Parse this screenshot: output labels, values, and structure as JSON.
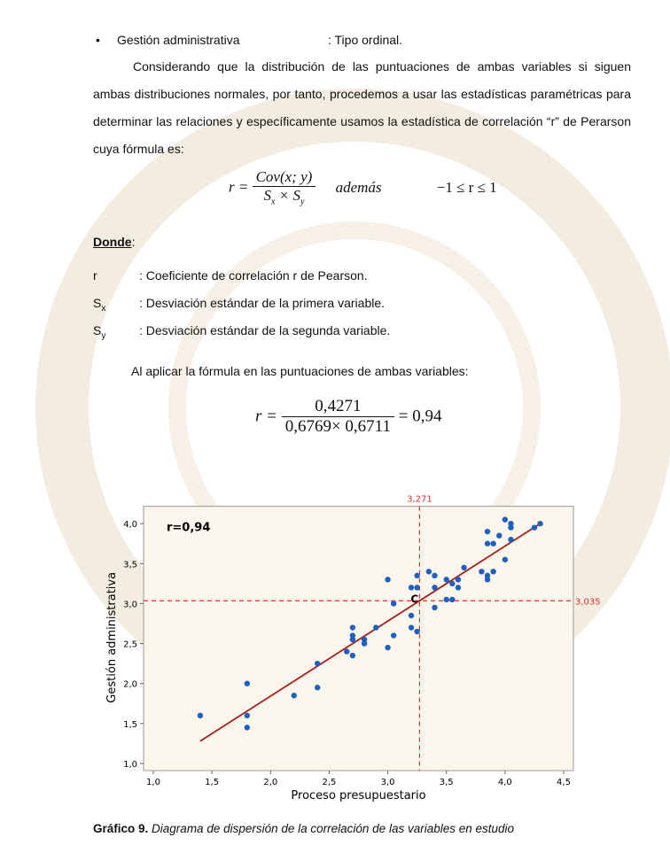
{
  "bullet": {
    "label": "Gestión administrativa",
    "text": ": Tipo ordinal."
  },
  "paragraph_1": "Considerando que la distribución de las puntuaciones de ambas variables si siguen ambas distribuciones normales, por tanto, procedemos a usar las estadísticas paramétricas para determinar las relaciones y específicamente usamos la estadística de correlación “r” de Perarson cuya fórmula es:",
  "formula_1": {
    "lhs": "r =",
    "numerator": "Cov(x; y)",
    "s1": "S",
    "sub1": "x",
    "times": "×",
    "s2": "S",
    "sub2": "y",
    "note": "además",
    "range": "−1 ≤ r ≤ 1"
  },
  "donde": {
    "label": "Donde",
    "colon": ":"
  },
  "definitions": [
    {
      "symbol": "r",
      "sub": "",
      "text": ": Coeficiente de correlación r de Pearson."
    },
    {
      "symbol": "S",
      "sub": "x",
      "text": ": Desviación estándar de la primera variable."
    },
    {
      "symbol": "S",
      "sub": "y",
      "text": ": Desviación estándar de la segunda variable."
    }
  ],
  "paragraph_2": "Al aplicar la fórmula en las puntuaciones de ambas variables:",
  "formula_2": {
    "lhs": "r =",
    "numerator": "0,4271",
    "denominator": "0,6769× 0,6711",
    "result": "= 0,94"
  },
  "chart_data": {
    "type": "scatter",
    "xlabel": "Proceso presupuestario",
    "ylabel": "Gestión administrativa",
    "annotation": "r=0,94",
    "center_label": "C",
    "xlim": [
      1.0,
      4.5
    ],
    "ylim": [
      1.0,
      4.15
    ],
    "xticks": [
      {
        "value": 1.0,
        "label": "1,0"
      },
      {
        "value": 1.5,
        "label": "1,5"
      },
      {
        "value": 2.0,
        "label": "2,0"
      },
      {
        "value": 2.5,
        "label": "2,5"
      },
      {
        "value": 3.0,
        "label": "3,0"
      },
      {
        "value": 3.5,
        "label": "3,5"
      },
      {
        "value": 4.0,
        "label": "4,0"
      },
      {
        "value": 4.5,
        "label": "4,5"
      }
    ],
    "yticks": [
      {
        "value": 1.0,
        "label": "1,0"
      },
      {
        "value": 1.5,
        "label": "1,5"
      },
      {
        "value": 2.0,
        "label": "2,0"
      },
      {
        "value": 2.5,
        "label": "2,5"
      },
      {
        "value": 3.0,
        "label": "3,0"
      },
      {
        "value": 3.5,
        "label": "3,5"
      },
      {
        "value": 4.0,
        "label": "4,0"
      }
    ],
    "color": "#1f5fbf",
    "x": [
      1.4,
      1.8,
      1.8,
      1.8,
      2.2,
      2.4,
      2.4,
      2.65,
      2.7,
      2.7,
      2.7,
      2.7,
      2.8,
      2.8,
      2.9,
      3.0,
      3.0,
      3.05,
      3.05,
      3.2,
      3.2,
      3.2,
      3.25,
      3.25,
      3.25,
      3.35,
      3.4,
      3.4,
      3.4,
      3.5,
      3.5,
      3.55,
      3.55,
      3.6,
      3.6,
      3.65,
      3.8,
      3.85,
      3.85,
      3.85,
      3.85,
      3.9,
      3.9,
      3.95,
      4.0,
      4.0,
      4.05,
      4.05,
      4.05,
      4.25,
      4.3
    ],
    "values": [
      1.6,
      2.0,
      1.6,
      1.45,
      1.85,
      1.95,
      2.25,
      2.4,
      2.35,
      2.55,
      2.6,
      2.7,
      2.5,
      2.55,
      2.7,
      2.45,
      3.3,
      2.6,
      3.0,
      2.85,
      2.7,
      3.2,
      2.65,
      3.2,
      3.35,
      3.4,
      3.35,
      3.2,
      2.95,
      3.05,
      3.3,
      3.05,
      3.25,
      3.2,
      3.3,
      3.45,
      3.4,
      3.3,
      3.35,
      3.75,
      3.9,
      3.75,
      3.4,
      3.85,
      4.05,
      3.55,
      3.8,
      3.95,
      4.0,
      3.95,
      4.0
    ],
    "fit_line": {
      "color": "#a52020",
      "x": [
        1.4,
        4.3
      ],
      "values": [
        1.28,
        4.0
      ]
    },
    "ref_x": {
      "value": 3.271,
      "label": "3,271"
    },
    "ref_y": {
      "value": 3.035,
      "label": "3,035"
    },
    "ref_color": "#e03030"
  },
  "caption": {
    "label": "Gráfico 9.",
    "text": "Diagrama de dispersión de la correlación de las variables en estudio"
  }
}
